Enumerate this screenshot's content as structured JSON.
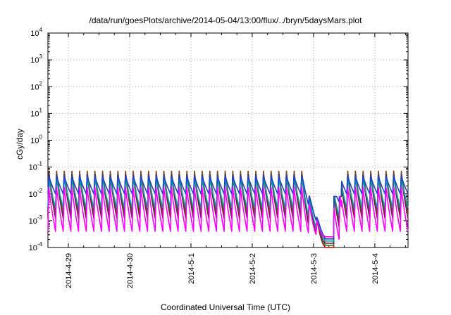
{
  "chart_data": {
    "type": "line",
    "title": "/data/run/goesPlots/archive/2014-05-04/13:00/flux/../bryn/5daysMars.plot",
    "xlabel": "Coordinated Universal Time (UTC)",
    "ylabel": "cGy/day",
    "y_scale": "log",
    "ylim": [
      0.0001,
      10000
    ],
    "xlim": [
      "2014-04-28T16:00",
      "2014-05-04T13:00"
    ],
    "x_ticks": [
      "2014-4-29",
      "2014-4-30",
      "2014-5-1",
      "2014-5-2",
      "2014-5-3",
      "2014-5-4"
    ],
    "y_ticks": [
      {
        "base": "10",
        "exp": "-4"
      },
      {
        "base": "10",
        "exp": "-3"
      },
      {
        "base": "10",
        "exp": "-2"
      },
      {
        "base": "10",
        "exp": "-1"
      },
      {
        "base": "10",
        "exp": "0"
      },
      {
        "base": "10",
        "exp": "1"
      },
      {
        "base": "10",
        "exp": "2"
      },
      {
        "base": "10",
        "exp": "3"
      },
      {
        "base": "10",
        "exp": "4"
      }
    ],
    "grid": true,
    "series_colors": [
      "#cc0000",
      "#2f7f2f",
      "#7a1a4a",
      "#00a0a0",
      "#1a44cc",
      "#ff00ff"
    ],
    "sawtooth_period_hours": 3,
    "series": [
      {
        "color": "#cc0000",
        "peak": 0.08,
        "trough": 0.002
      },
      {
        "color": "#2f7f2f",
        "peak": 0.07,
        "trough": 0.0015
      },
      {
        "color": "#7a1a4a",
        "peak": 0.06,
        "trough": 0.0012
      },
      {
        "color": "#00a0a0",
        "peak": 0.045,
        "trough": 0.003
      },
      {
        "color": "#1a44cc",
        "peak": 0.05,
        "trough": 0.01
      },
      {
        "color": "#ff00ff",
        "peak": 0.02,
        "trough": 0.0004
      }
    ],
    "event": {
      "dropout_start": "2014-05-02T20:00",
      "dropout_min_time": "2014-05-03T04:30",
      "recovery": "2014-05-03T08:00",
      "dropout_min": 0.0001
    }
  }
}
